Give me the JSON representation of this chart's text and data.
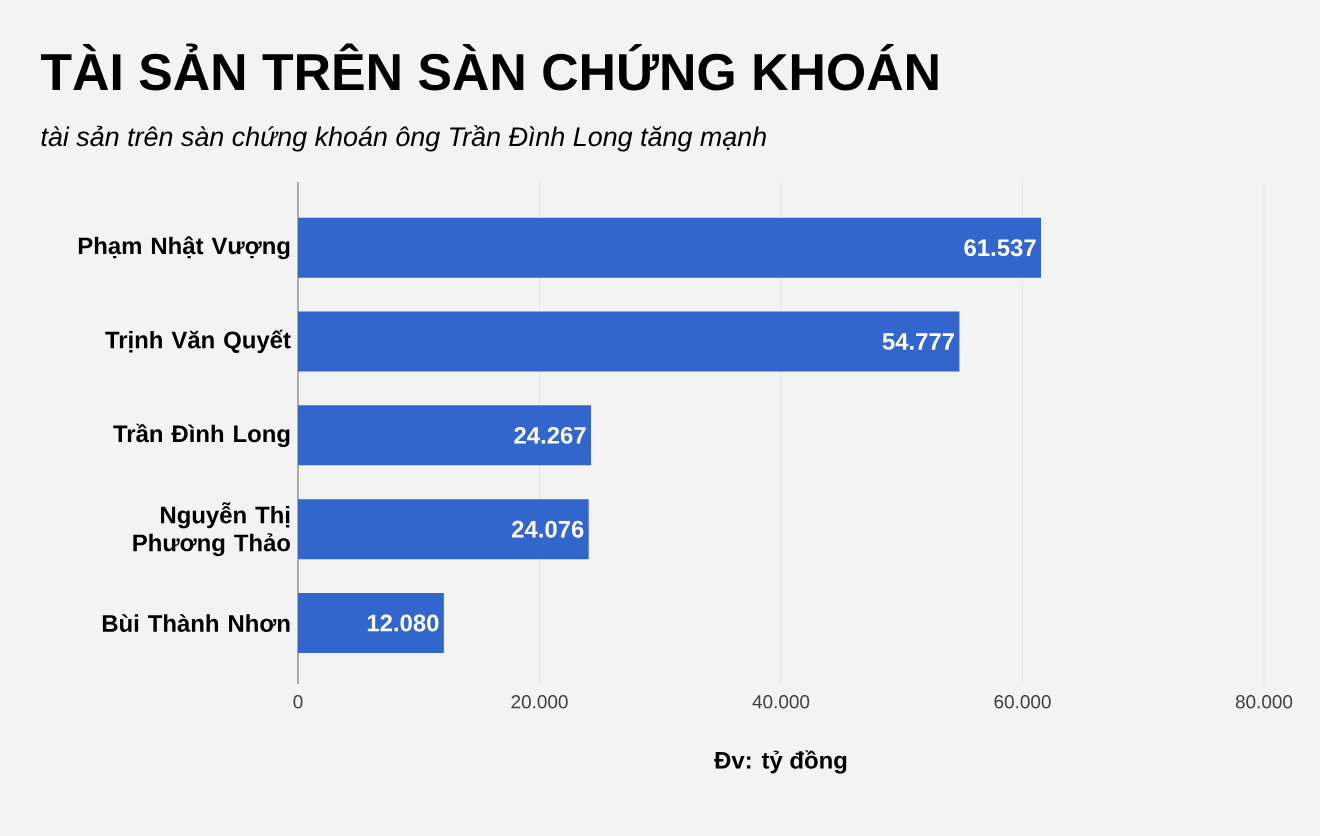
{
  "chart_data": {
    "type": "bar",
    "orientation": "horizontal",
    "title": "TÀI SẢN TRÊN SÀN CHỨNG KHOÁN",
    "subtitle": "tài sản trên sàn chứng khoán ông Trần Đình Long tăng mạnh",
    "xlabel": "Đv: tỷ đồng",
    "categories": [
      "Phạm Nhật Vượng",
      "Trịnh Văn Quyết",
      "Trần Đình Long",
      "Nguyễn Thị Phương Thảo",
      "Bùi Thành Nhơn"
    ],
    "values": [
      61537,
      54777,
      24267,
      24076,
      12080
    ],
    "value_labels": [
      "61.537",
      "54.777",
      "24.267",
      "24.076",
      "12.080"
    ],
    "color": "#3366cc",
    "xlim": [
      0,
      80000
    ],
    "xticks": [
      0,
      {
        "value": 20000,
        "label": "20.000"
      },
      {
        "value": 40000,
        "label": "40.000"
      },
      {
        "value": 60000,
        "label": "60.000"
      },
      {
        "value": 80000,
        "label": "80.000"
      }
    ],
    "grid": "x"
  }
}
